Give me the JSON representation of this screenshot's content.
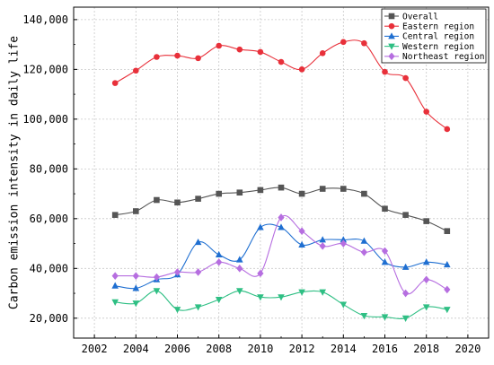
{
  "chart_data": {
    "type": "line",
    "title": "",
    "xlabel": "",
    "ylabel": "Carbon emission intensity in daily life",
    "x": [
      2003,
      2004,
      2005,
      2006,
      2007,
      2008,
      2009,
      2010,
      2011,
      2012,
      2013,
      2014,
      2015,
      2016,
      2017,
      2018,
      2019
    ],
    "xlim": [
      2001,
      2021
    ],
    "ylim": [
      12000,
      145000
    ],
    "xticks": [
      2002,
      2004,
      2006,
      2008,
      2010,
      2012,
      2014,
      2016,
      2018,
      2020
    ],
    "xtick_labels": [
      "2002",
      "2004",
      "2006",
      "2008",
      "2010",
      "2012",
      "2014",
      "2016",
      "2018",
      "2020"
    ],
    "yticks": [
      20000,
      40000,
      60000,
      80000,
      100000,
      120000,
      140000
    ],
    "ytick_labels": [
      "20,000",
      "40,000",
      "60,000",
      "80,000",
      "100,000",
      "120,000",
      "140,000"
    ],
    "grid": true,
    "legend_position": "top-right",
    "series": [
      {
        "name": "Overall",
        "color": "#555555",
        "marker": "square",
        "values": [
          61500,
          63000,
          67500,
          66500,
          68000,
          70000,
          70500,
          71500,
          72500,
          70000,
          72000,
          72000,
          70000,
          64000,
          61500,
          59000,
          55000
        ]
      },
      {
        "name": "Eastern region",
        "color": "#e8303a",
        "marker": "circle",
        "values": [
          114500,
          119500,
          125000,
          125500,
          124500,
          129500,
          128000,
          127000,
          123000,
          120000,
          126500,
          131000,
          130500,
          119000,
          116500,
          103000,
          96000
        ]
      },
      {
        "name": "Central region",
        "color": "#1f6fd1",
        "marker": "triangle-up",
        "values": [
          33000,
          32000,
          35500,
          37500,
          50500,
          45500,
          43500,
          56500,
          56500,
          49500,
          51500,
          51500,
          51000,
          42500,
          40500,
          42500,
          41500
        ]
      },
      {
        "name": "Western region",
        "color": "#2fbf84",
        "marker": "triangle-down",
        "values": [
          26500,
          26000,
          31000,
          23500,
          24500,
          27500,
          31000,
          28500,
          28500,
          30500,
          30500,
          25500,
          21000,
          20500,
          20000,
          24500,
          23500
        ]
      },
      {
        "name": "Northeast region",
        "color": "#b66ee0",
        "marker": "diamond",
        "values": [
          37000,
          37000,
          36500,
          38500,
          38500,
          42500,
          40000,
          38000,
          60500,
          55000,
          49000,
          50000,
          46500,
          47000,
          30000,
          35500,
          31500
        ]
      }
    ]
  }
}
